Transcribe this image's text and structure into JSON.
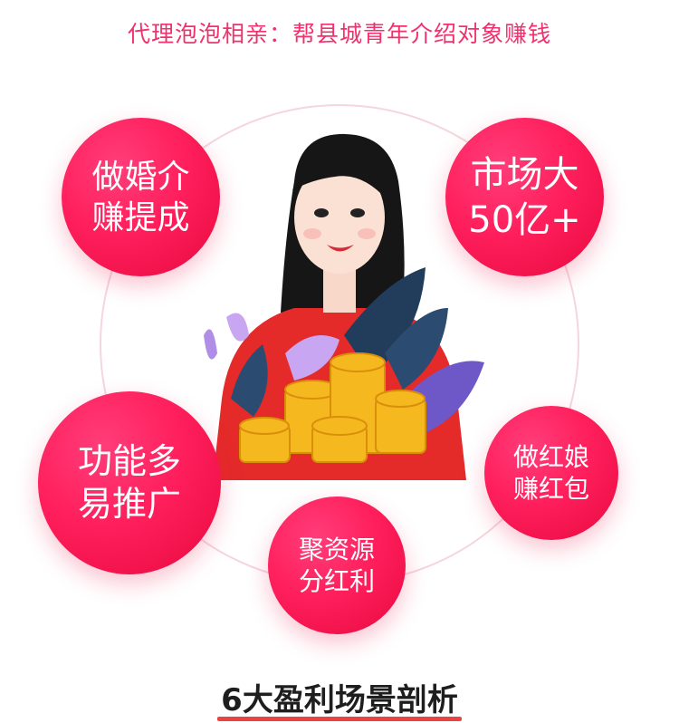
{
  "headline": "代理泡泡相亲：帮县城青年介绍对象赚钱",
  "bubbles": [
    {
      "line1": "做婚介",
      "line2": "赚提成"
    },
    {
      "line1": "市场大",
      "line2": "50亿+"
    },
    {
      "line1": "功能多",
      "line2": "易推广"
    },
    {
      "line1": "做红娘",
      "line2": "赚红包"
    },
    {
      "line1": "聚资源",
      "line2": "分红利"
    }
  ],
  "section_title": "6大盈利场景剖析",
  "colors": {
    "accent": "#f0316e",
    "bubble": "#ff1f5c",
    "underline": "#e9443f"
  },
  "illustration": "woman-with-coin-stacks-and-leaves"
}
